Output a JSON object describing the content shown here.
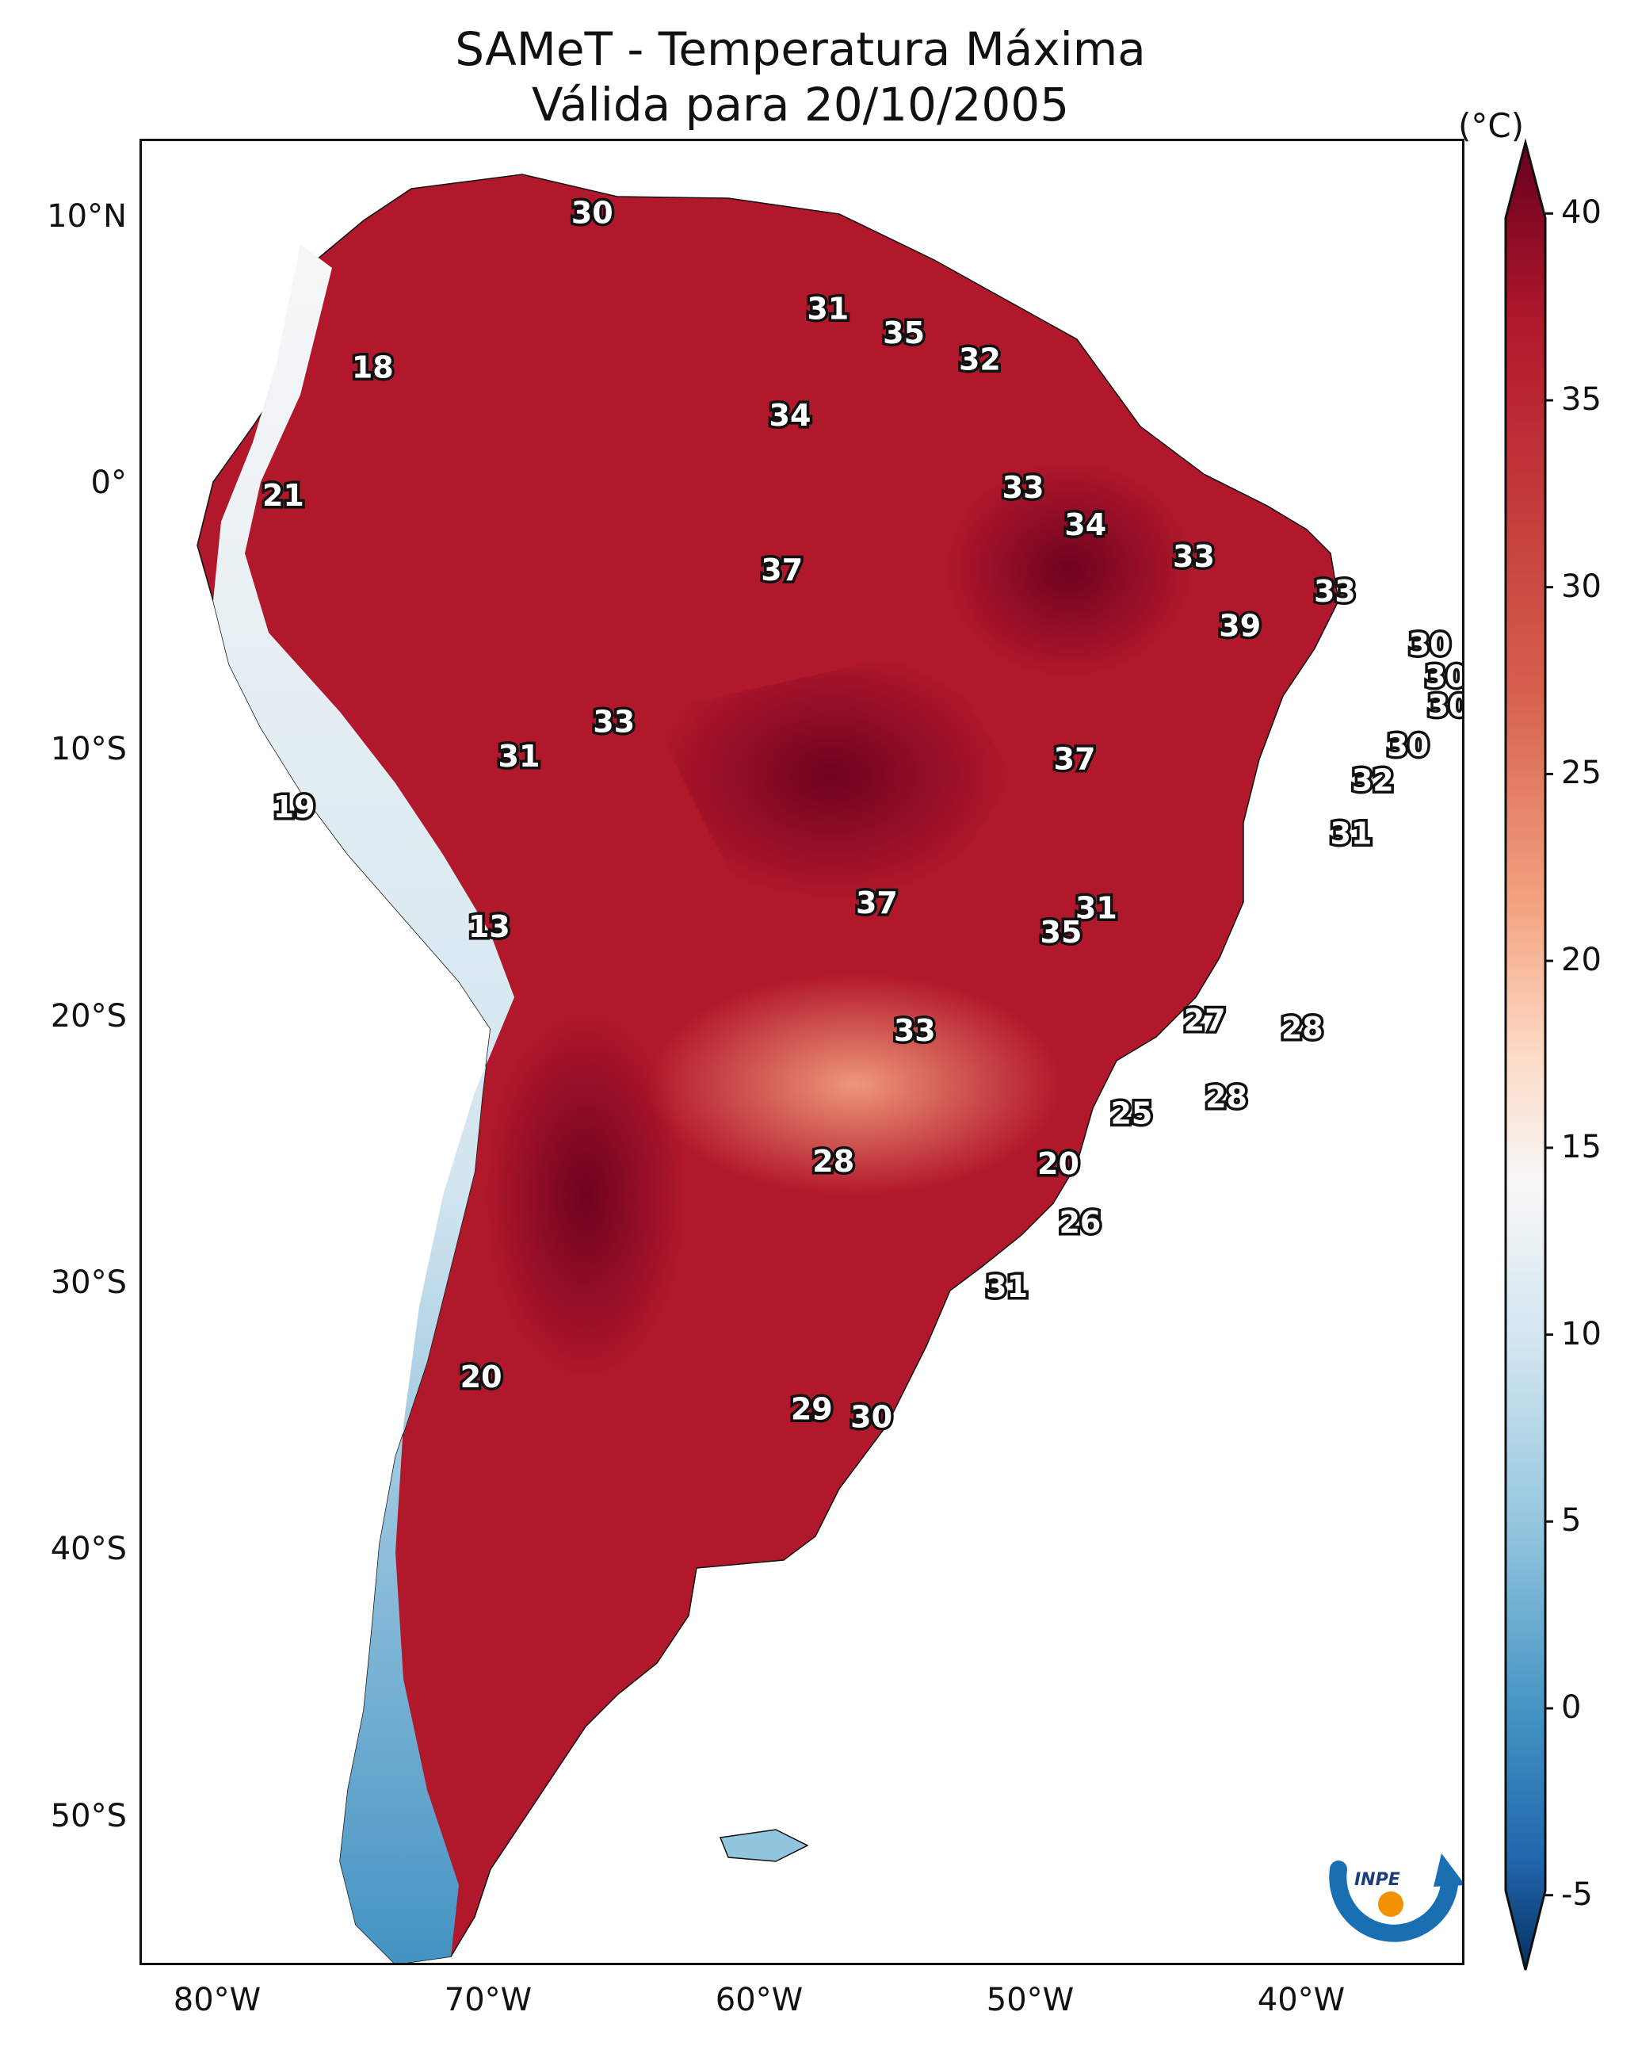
{
  "title": {
    "line1": "SAMeT - Temperatura Máxima",
    "line2": "Válida para 20/10/2005"
  },
  "axes": {
    "lat_labels": [
      "10°N",
      "0°",
      "10°S",
      "20°S",
      "30°S",
      "40°S",
      "50°S"
    ],
    "lon_labels": [
      "80°W",
      "70°W",
      "60°W",
      "50°W",
      "40°W"
    ]
  },
  "colorbar": {
    "unit": "(°C)",
    "ticks": [
      "40",
      "35",
      "30",
      "25",
      "20",
      "15",
      "10",
      "5",
      "0",
      "-5"
    ],
    "range": [
      -7,
      42
    ],
    "colors": {
      "hot": "#67001f",
      "warm": "#b2182b",
      "mild": "#f4a582",
      "neutral": "#f7f7f7",
      "cool": "#92c5de",
      "cold": "#053061"
    }
  },
  "point_values": [
    {
      "v": "30",
      "lon": -66.5,
      "lat": 10.3
    },
    {
      "v": "18",
      "lon": -74.6,
      "lat": 4.5
    },
    {
      "v": "21",
      "lon": -77.9,
      "lat": -0.3
    },
    {
      "v": "31",
      "lon": -57.8,
      "lat": 6.7
    },
    {
      "v": "35",
      "lon": -55.0,
      "lat": 5.8
    },
    {
      "v": "32",
      "lon": -52.2,
      "lat": 4.8
    },
    {
      "v": "34",
      "lon": -59.2,
      "lat": 2.7
    },
    {
      "v": "33",
      "lon": -50.6,
      "lat": 0.0
    },
    {
      "v": "34",
      "lon": -48.3,
      "lat": -1.4
    },
    {
      "v": "37",
      "lon": -59.5,
      "lat": -3.1
    },
    {
      "v": "33",
      "lon": -44.3,
      "lat": -2.6
    },
    {
      "v": "33",
      "lon": -39.1,
      "lat": -3.9
    },
    {
      "v": "39",
      "lon": -42.6,
      "lat": -5.2
    },
    {
      "v": "30",
      "lon": -35.6,
      "lat": -5.9
    },
    {
      "v": "30",
      "lon": -35.0,
      "lat": -7.1
    },
    {
      "v": "30",
      "lon": -34.9,
      "lat": -8.2
    },
    {
      "v": "33",
      "lon": -65.7,
      "lat": -8.8
    },
    {
      "v": "31",
      "lon": -69.2,
      "lat": -10.1
    },
    {
      "v": "37",
      "lon": -48.7,
      "lat": -10.2
    },
    {
      "v": "30",
      "lon": -36.4,
      "lat": -9.7
    },
    {
      "v": "32",
      "lon": -37.7,
      "lat": -11.0
    },
    {
      "v": "19",
      "lon": -77.5,
      "lat": -12.0
    },
    {
      "v": "31",
      "lon": -38.5,
      "lat": -13.0
    },
    {
      "v": "37",
      "lon": -56.0,
      "lat": -15.6
    },
    {
      "v": "31",
      "lon": -47.9,
      "lat": -15.8
    },
    {
      "v": "35",
      "lon": -49.2,
      "lat": -16.7
    },
    {
      "v": "13",
      "lon": -70.3,
      "lat": -16.5
    },
    {
      "v": "27",
      "lon": -43.9,
      "lat": -20.0
    },
    {
      "v": "28",
      "lon": -40.3,
      "lat": -20.3
    },
    {
      "v": "33",
      "lon": -54.6,
      "lat": -20.4
    },
    {
      "v": "28",
      "lon": -43.1,
      "lat": -22.9
    },
    {
      "v": "25",
      "lon": -46.6,
      "lat": -23.5
    },
    {
      "v": "28",
      "lon": -57.6,
      "lat": -25.3
    },
    {
      "v": "20",
      "lon": -49.3,
      "lat": -25.4
    },
    {
      "v": "26",
      "lon": -48.5,
      "lat": -27.6
    },
    {
      "v": "31",
      "lon": -51.2,
      "lat": -30.0
    },
    {
      "v": "20",
      "lon": -70.6,
      "lat": -33.4
    },
    {
      "v": "29",
      "lon": -58.4,
      "lat": -34.6
    },
    {
      "v": "30",
      "lon": -56.2,
      "lat": -34.9
    }
  ],
  "logo": {
    "text": "INPE"
  }
}
